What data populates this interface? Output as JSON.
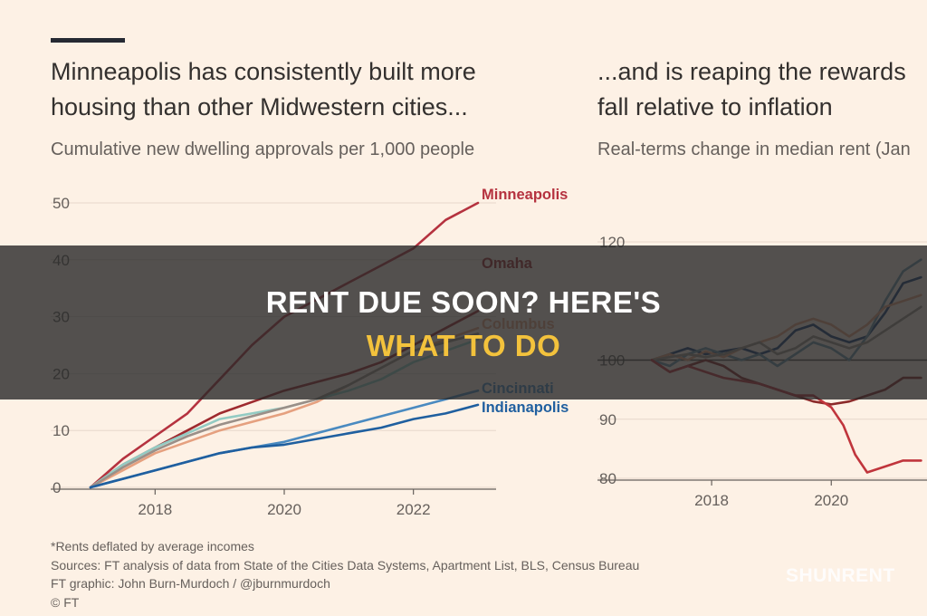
{
  "left": {
    "title_line1": "Minneapolis has consistently built more",
    "title_line2": "housing than other Midwestern cities...",
    "subtitle": "Cumulative new dwelling approvals per 1,000 people"
  },
  "right": {
    "title_line1": "...and is reaping the rewards",
    "title_line2": "fall relative to inflation",
    "subtitle": "Real-terms change in median rent (Jan"
  },
  "footer": {
    "note": "*Rents deflated by average incomes",
    "sources": "Sources: FT analysis of data from State of the Cities Data Systems, Apartment List, BLS, Census Bureau",
    "graphic": "FT graphic: John Burn-Murdoch / @jburnmurdoch",
    "copyright": "© FT"
  },
  "overlay": {
    "headline_top": "RENT DUE SOON? HERE'S",
    "headline_bottom": "WHAT TO DO",
    "watermark": "SHUNRENT"
  },
  "chart_data": [
    {
      "type": "line",
      "title": "Minneapolis has consistently built more housing than other Midwestern cities...",
      "subtitle": "Cumulative new dwelling approvals per 1,000 people",
      "xlim": [
        2017,
        2023
      ],
      "ylim": [
        0,
        50
      ],
      "x_ticks": [
        2018,
        2020,
        2022
      ],
      "y_ticks": [
        0,
        10,
        20,
        30,
        40,
        50
      ],
      "grid": true,
      "series": [
        {
          "name": "Minneapolis",
          "color": "#b5323f",
          "points": [
            [
              2017,
              0
            ],
            [
              2017.5,
              5
            ],
            [
              2018,
              9
            ],
            [
              2018.5,
              13
            ],
            [
              2019,
              19
            ],
            [
              2019.5,
              25
            ],
            [
              2020,
              30
            ],
            [
              2020.5,
              33
            ],
            [
              2021,
              36
            ],
            [
              2021.5,
              39
            ],
            [
              2022,
              42
            ],
            [
              2022.5,
              47
            ],
            [
              2023,
              50
            ]
          ]
        },
        {
          "name": "Omaha",
          "color": "#9e2a2f",
          "points": [
            [
              2017,
              0
            ],
            [
              2017.5,
              4
            ],
            [
              2018,
              7
            ],
            [
              2018.5,
              10
            ],
            [
              2019,
              13
            ],
            [
              2019.5,
              15
            ],
            [
              2020,
              17
            ],
            [
              2020.5,
              18.5
            ],
            [
              2021,
              20
            ],
            [
              2021.5,
              22
            ],
            [
              2022,
              25
            ],
            [
              2022.5,
              28
            ],
            [
              2023,
              31
            ]
          ]
        },
        {
          "name": "Columbus",
          "color": "#e5a07f",
          "points": [
            [
              2017,
              0
            ],
            [
              2017.5,
              3
            ],
            [
              2018,
              6
            ],
            [
              2018.5,
              8
            ],
            [
              2019,
              10
            ],
            [
              2019.5,
              11.5
            ],
            [
              2020,
              13
            ],
            [
              2020.5,
              15
            ],
            [
              2021,
              18
            ],
            [
              2021.5,
              21
            ],
            [
              2022,
              24
            ],
            [
              2022.5,
              26
            ],
            [
              2023,
              28
            ]
          ]
        },
        {
          "name": "",
          "color": "#93cbc3",
          "points": [
            [
              2017,
              0
            ],
            [
              2017.5,
              4
            ],
            [
              2018,
              7
            ],
            [
              2018.5,
              9.5
            ],
            [
              2019,
              12
            ],
            [
              2019.5,
              13
            ],
            [
              2020,
              14
            ],
            [
              2020.5,
              15.5
            ],
            [
              2021,
              17
            ],
            [
              2021.5,
              19
            ],
            [
              2022,
              22
            ],
            [
              2022.5,
              24
            ],
            [
              2023,
              26
            ]
          ]
        },
        {
          "name": "",
          "color": "#9a8f88",
          "points": [
            [
              2017,
              0
            ],
            [
              2017.5,
              3.5
            ],
            [
              2018,
              6.5
            ],
            [
              2018.5,
              9
            ],
            [
              2019,
              11
            ],
            [
              2019.5,
              12.5
            ],
            [
              2020,
              14
            ],
            [
              2020.5,
              15.5
            ],
            [
              2021,
              18
            ],
            [
              2021.5,
              21
            ],
            [
              2022,
              24
            ],
            [
              2022.5,
              25.5
            ],
            [
              2023,
              27
            ]
          ]
        },
        {
          "name": "Cincinnati",
          "color": "#4a8ac0",
          "points": [
            [
              2017,
              0
            ],
            [
              2017.5,
              1.5
            ],
            [
              2018,
              3
            ],
            [
              2018.5,
              4.5
            ],
            [
              2019,
              6
            ],
            [
              2019.5,
              7
            ],
            [
              2020,
              8
            ],
            [
              2020.5,
              9.5
            ],
            [
              2021,
              11
            ],
            [
              2021.5,
              12.5
            ],
            [
              2022,
              14
            ],
            [
              2022.5,
              15.5
            ],
            [
              2023,
              17
            ]
          ]
        },
        {
          "name": "Indianapolis",
          "color": "#1f5f9f",
          "points": [
            [
              2017,
              0
            ],
            [
              2017.5,
              1.5
            ],
            [
              2018,
              3
            ],
            [
              2018.5,
              4.5
            ],
            [
              2019,
              6
            ],
            [
              2019.5,
              7
            ],
            [
              2020,
              7.5
            ],
            [
              2020.5,
              8.5
            ],
            [
              2021,
              9.5
            ],
            [
              2021.5,
              10.5
            ],
            [
              2022,
              12
            ],
            [
              2022.5,
              13
            ],
            [
              2023,
              14.5
            ]
          ]
        }
      ]
    },
    {
      "type": "line",
      "title": "...and is reaping the rewards fall relative to inflation",
      "subtitle": "Real-terms change in median rent (Jan",
      "xlim": [
        2017,
        2021.6
      ],
      "ylim": [
        80,
        120
      ],
      "x_ticks": [
        2018,
        2020
      ],
      "y_ticks": [
        80,
        90,
        100,
        120
      ],
      "reference_line": 100,
      "grid": true,
      "series": [
        {
          "name": "",
          "color": "#1a3f73",
          "points": [
            [
              2017,
              100
            ],
            [
              2017.3,
              101
            ],
            [
              2017.6,
              102
            ],
            [
              2017.9,
              101
            ],
            [
              2018.2,
              101.5
            ],
            [
              2018.5,
              102
            ],
            [
              2018.8,
              101
            ],
            [
              2019.1,
              102
            ],
            [
              2019.4,
              105
            ],
            [
              2019.7,
              106
            ],
            [
              2020,
              104
            ],
            [
              2020.3,
              103
            ],
            [
              2020.6,
              104
            ],
            [
              2020.9,
              108
            ],
            [
              2021.2,
              113
            ],
            [
              2021.5,
              114
            ]
          ]
        },
        {
          "name": "",
          "color": "#6b8fa6",
          "points": [
            [
              2017,
              100
            ],
            [
              2017.3,
              99
            ],
            [
              2017.6,
              101
            ],
            [
              2017.9,
              102
            ],
            [
              2018.2,
              101
            ],
            [
              2018.5,
              100
            ],
            [
              2018.8,
              101
            ],
            [
              2019.1,
              99
            ],
            [
              2019.4,
              101
            ],
            [
              2019.7,
              103
            ],
            [
              2020,
              102
            ],
            [
              2020.3,
              100
            ],
            [
              2020.6,
              104
            ],
            [
              2020.9,
              110
            ],
            [
              2021.2,
              115
            ],
            [
              2021.5,
              117
            ]
          ]
        },
        {
          "name": "",
          "color": "#e5a07f",
          "points": [
            [
              2017,
              100
            ],
            [
              2017.3,
              101
            ],
            [
              2017.6,
              100
            ],
            [
              2017.9,
              101.5
            ],
            [
              2018.2,
              100.5
            ],
            [
              2018.5,
              102
            ],
            [
              2018.8,
              103
            ],
            [
              2019.1,
              104
            ],
            [
              2019.4,
              106
            ],
            [
              2019.7,
              107
            ],
            [
              2020,
              106
            ],
            [
              2020.3,
              104
            ],
            [
              2020.6,
              106
            ],
            [
              2020.9,
              109
            ],
            [
              2021.2,
              110
            ],
            [
              2021.5,
              111
            ]
          ]
        },
        {
          "name": "",
          "color": "#9a8f88",
          "points": [
            [
              2017,
              100
            ],
            [
              2017.3,
              100.5
            ],
            [
              2017.6,
              101
            ],
            [
              2017.9,
              100.5
            ],
            [
              2018.2,
              101
            ],
            [
              2018.5,
              102
            ],
            [
              2018.8,
              103
            ],
            [
              2019.1,
              101
            ],
            [
              2019.4,
              102
            ],
            [
              2019.7,
              104
            ],
            [
              2020,
              103
            ],
            [
              2020.3,
              102
            ],
            [
              2020.6,
              103
            ],
            [
              2020.9,
              105
            ],
            [
              2021.2,
              107
            ],
            [
              2021.5,
              109
            ]
          ]
        },
        {
          "name": "",
          "color": "#8b2a2a",
          "points": [
            [
              2017,
              100
            ],
            [
              2017.3,
              98
            ],
            [
              2017.6,
              99
            ],
            [
              2017.9,
              100
            ],
            [
              2018.2,
              99
            ],
            [
              2018.5,
              97
            ],
            [
              2018.8,
              96
            ],
            [
              2019.1,
              95
            ],
            [
              2019.4,
              94
            ],
            [
              2019.7,
              93
            ],
            [
              2020,
              92.5
            ],
            [
              2020.3,
              93
            ],
            [
              2020.6,
              94
            ],
            [
              2020.9,
              95
            ],
            [
              2021.2,
              97
            ],
            [
              2021.5,
              97
            ]
          ]
        },
        {
          "name": "",
          "color": "#c0353c",
          "points": [
            [
              2017,
              100
            ],
            [
              2017.3,
              98
            ],
            [
              2017.6,
              99
            ],
            [
              2017.9,
              98
            ],
            [
              2018.2,
              97
            ],
            [
              2018.5,
              96.5
            ],
            [
              2018.8,
              96
            ],
            [
              2019.1,
              95
            ],
            [
              2019.4,
              94
            ],
            [
              2019.7,
              94
            ],
            [
              2020,
              92
            ],
            [
              2020.2,
              89
            ],
            [
              2020.4,
              84
            ],
            [
              2020.6,
              81
            ],
            [
              2020.9,
              82
            ],
            [
              2021.2,
              83
            ],
            [
              2021.5,
              83
            ]
          ]
        }
      ]
    }
  ]
}
